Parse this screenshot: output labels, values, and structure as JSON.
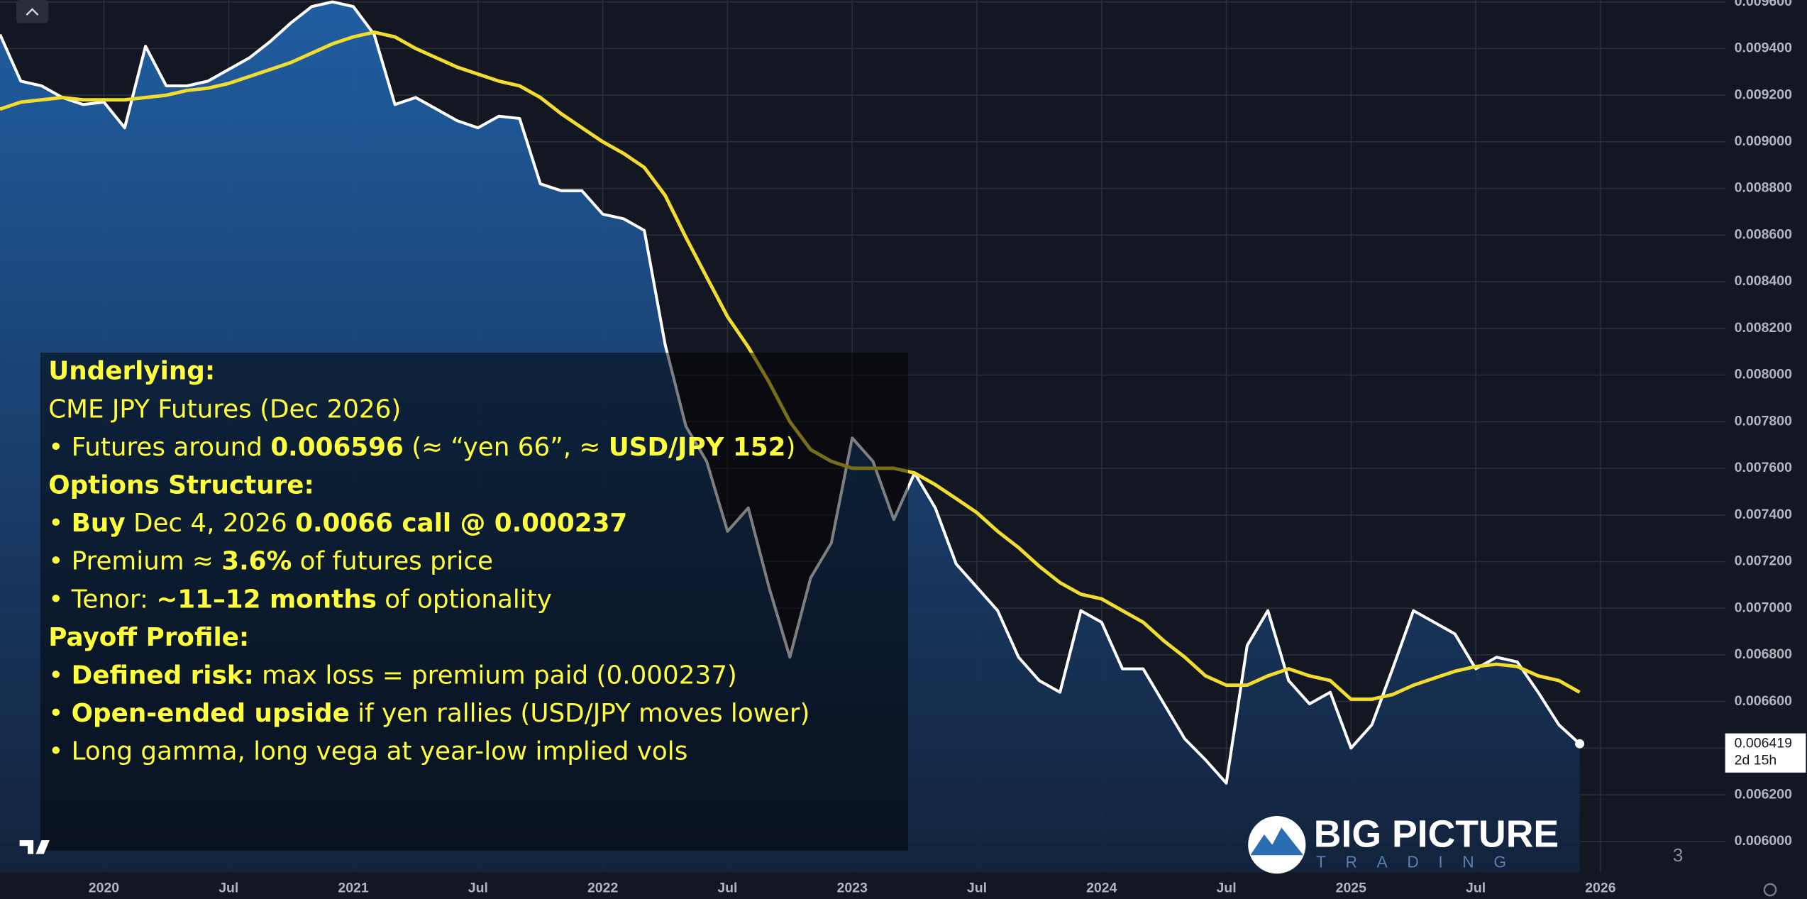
{
  "chart_data": {
    "type": "line",
    "x": [
      "2019-08",
      "2019-09",
      "2019-10",
      "2019-11",
      "2019-12",
      "2020-01",
      "2020-02",
      "2020-03",
      "2020-04",
      "2020-05",
      "2020-06",
      "2020-07",
      "2020-08",
      "2020-09",
      "2020-10",
      "2020-11",
      "2020-12",
      "2021-01",
      "2021-02",
      "2021-03",
      "2021-04",
      "2021-05",
      "2021-06",
      "2021-07",
      "2021-08",
      "2021-09",
      "2021-10",
      "2021-11",
      "2021-12",
      "2022-01",
      "2022-02",
      "2022-03",
      "2022-04",
      "2022-05",
      "2022-06",
      "2022-07",
      "2022-08",
      "2022-09",
      "2022-10",
      "2022-11",
      "2022-12",
      "2023-01",
      "2023-02",
      "2023-03",
      "2023-04",
      "2023-05",
      "2023-06",
      "2023-07",
      "2023-08",
      "2023-09",
      "2023-10",
      "2023-11",
      "2023-12",
      "2024-01",
      "2024-02",
      "2024-03",
      "2024-04",
      "2024-05",
      "2024-06",
      "2024-07",
      "2024-08",
      "2024-09",
      "2024-10",
      "2024-11",
      "2024-12",
      "2025-01",
      "2025-02",
      "2025-03",
      "2025-04",
      "2025-05",
      "2025-06",
      "2025-07",
      "2025-08",
      "2025-09",
      "2025-10",
      "2025-11",
      "2025-12"
    ],
    "series": [
      {
        "color": "#ffffff",
        "area": true,
        "values": [
          0.00946,
          0.00926,
          0.00924,
          0.00919,
          0.00916,
          0.00917,
          0.00906,
          0.00941,
          0.00924,
          0.00924,
          0.00926,
          0.00931,
          0.00936,
          0.00943,
          0.00951,
          0.00958,
          0.0096,
          0.00958,
          0.00946,
          0.00916,
          0.00919,
          0.00914,
          0.00909,
          0.00906,
          0.00911,
          0.0091,
          0.00882,
          0.00879,
          0.00879,
          0.00869,
          0.00867,
          0.00862,
          0.00813,
          0.00778,
          0.00763,
          0.00733,
          0.00743,
          0.00709,
          0.00679,
          0.00713,
          0.00728,
          0.00773,
          0.00763,
          0.00738,
          0.00758,
          0.00743,
          0.00719,
          0.00709,
          0.00699,
          0.00679,
          0.00669,
          0.00664,
          0.00699,
          0.00694,
          0.00674,
          0.00674,
          0.00659,
          0.00644,
          0.00635,
          0.00625,
          0.00684,
          0.00699,
          0.00669,
          0.00659,
          0.00664,
          0.0064,
          0.0065,
          0.00674,
          0.00699,
          0.00694,
          0.00689,
          0.00674,
          0.00679,
          0.00677,
          0.00664,
          0.0065,
          0.006419
        ]
      },
      {
        "color": "#f2dc2e",
        "area": false,
        "values": [
          0.00914,
          0.00917,
          0.00918,
          0.00919,
          0.00918,
          0.00918,
          0.00918,
          0.00919,
          0.0092,
          0.00922,
          0.00923,
          0.00925,
          0.00928,
          0.00931,
          0.00934,
          0.00938,
          0.00942,
          0.00945,
          0.00947,
          0.00945,
          0.0094,
          0.00936,
          0.00932,
          0.00929,
          0.00926,
          0.00924,
          0.00919,
          0.00912,
          0.00906,
          0.009,
          0.00895,
          0.00889,
          0.00877,
          0.00859,
          0.00842,
          0.00825,
          0.00812,
          0.00797,
          0.0078,
          0.00768,
          0.00763,
          0.0076,
          0.0076,
          0.0076,
          0.00758,
          0.00753,
          0.00747,
          0.00741,
          0.00733,
          0.00726,
          0.00718,
          0.00711,
          0.00706,
          0.00704,
          0.00699,
          0.00694,
          0.00686,
          0.00679,
          0.00671,
          0.00667,
          0.00667,
          0.00671,
          0.00674,
          0.00671,
          0.00669,
          0.00661,
          0.00661,
          0.00663,
          0.00667,
          0.0067,
          0.00673,
          0.00675,
          0.00676,
          0.00675,
          0.00671,
          0.00669,
          0.00664
        ]
      }
    ],
    "xlim": [
      "2019-08",
      "2026-07"
    ],
    "xticks": [
      {
        "value": "2020-01",
        "label": "2020"
      },
      {
        "value": "2020-07",
        "label": "Jul"
      },
      {
        "value": "2021-01",
        "label": "2021"
      },
      {
        "value": "2021-07",
        "label": "Jul"
      },
      {
        "value": "2022-01",
        "label": "2022"
      },
      {
        "value": "2022-07",
        "label": "Jul"
      },
      {
        "value": "2023-01",
        "label": "2023"
      },
      {
        "value": "2023-07",
        "label": "Jul"
      },
      {
        "value": "2024-01",
        "label": "2024"
      },
      {
        "value": "2024-07",
        "label": "Jul"
      },
      {
        "value": "2025-01",
        "label": "2025"
      },
      {
        "value": "2025-07",
        "label": "Jul"
      },
      {
        "value": "2026-01",
        "label": "2026"
      }
    ],
    "ylim": [
      0.005867,
      0.009608
    ],
    "yticks": [
      {
        "value": 0.006,
        "label": "0.006000"
      },
      {
        "value": 0.0062,
        "label": "0.006200"
      },
      {
        "value": 0.0064,
        "label": "0.006400"
      },
      {
        "value": 0.0066,
        "label": "0.006600"
      },
      {
        "value": 0.0068,
        "label": "0.006800"
      },
      {
        "value": 0.007,
        "label": "0.007000"
      },
      {
        "value": 0.0072,
        "label": "0.007200"
      },
      {
        "value": 0.0074,
        "label": "0.007400"
      },
      {
        "value": 0.0076,
        "label": "0.007600"
      },
      {
        "value": 0.0078,
        "label": "0.007800"
      },
      {
        "value": 0.008,
        "label": "0.008000"
      },
      {
        "value": 0.0082,
        "label": "0.008200"
      },
      {
        "value": 0.0084,
        "label": "0.008400"
      },
      {
        "value": 0.0086,
        "label": "0.008600"
      },
      {
        "value": 0.0088,
        "label": "0.008800"
      },
      {
        "value": 0.009,
        "label": "0.009000"
      },
      {
        "value": 0.0092,
        "label": "0.009200"
      },
      {
        "value": 0.0094,
        "label": "0.009400"
      },
      {
        "value": 0.0096,
        "label": "0.009600"
      }
    ],
    "grid": true,
    "countdown": "2d 15h"
  },
  "annotation": {
    "lines": [
      [
        {
          "text": "Underlying:",
          "bold": true
        }
      ],
      [
        {
          "text": "CME JPY Futures (Dec 2026)",
          "bold": false
        }
      ],
      [
        {
          "text": "• Futures around ",
          "bold": false
        },
        {
          "text": "0.006596",
          "bold": true
        },
        {
          "text": " (≈ “yen 66”, ≈ ",
          "bold": false
        },
        {
          "text": "USD/JPY 152",
          "bold": true
        },
        {
          "text": ")",
          "bold": false
        }
      ],
      [
        {
          "text": "Options Structure:",
          "bold": true
        }
      ],
      [
        {
          "text": "• ",
          "bold": false
        },
        {
          "text": "Buy",
          "bold": true
        },
        {
          "text": " Dec 4, 2026 ",
          "bold": false
        },
        {
          "text": "0.0066 call @ 0.000237",
          "bold": true
        }
      ],
      [
        {
          "text": "• Premium ≈ ",
          "bold": false
        },
        {
          "text": "3.6%",
          "bold": true
        },
        {
          "text": " of futures price",
          "bold": false
        }
      ],
      [
        {
          "text": "• Tenor: ",
          "bold": false
        },
        {
          "text": "~11–12 months",
          "bold": true
        },
        {
          "text": " of optionality",
          "bold": false
        }
      ],
      [
        {
          "text": "Payoff Profile:",
          "bold": true
        }
      ],
      [
        {
          "text": "• ",
          "bold": false
        },
        {
          "text": "Defined risk:",
          "bold": true
        },
        {
          "text": " max loss = premium paid (0.000237)",
          "bold": false
        }
      ],
      [
        {
          "text": "• ",
          "bold": false
        },
        {
          "text": "Open-ended upside",
          "bold": true
        },
        {
          "text": " if yen rallies (USD/JPY moves lower)",
          "bold": false
        }
      ],
      [
        {
          "text": "• Long gamma, long vega at year-low implied vols",
          "bold": false
        }
      ]
    ]
  },
  "logo": {
    "title": "BIG PICTURE",
    "subtitle": "TRADING"
  },
  "page_number": "3"
}
